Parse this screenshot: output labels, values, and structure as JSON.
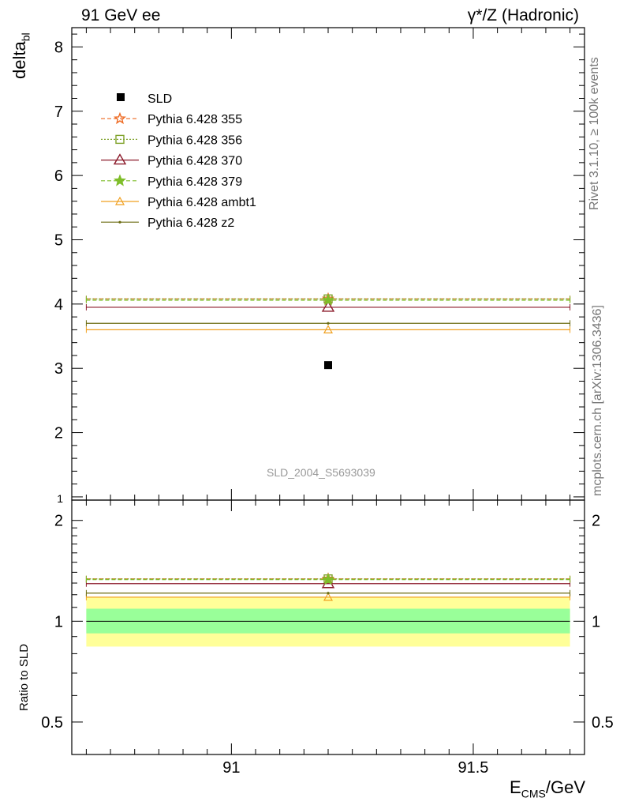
{
  "header": {
    "left": "91 GeV ee",
    "right": "γ*/Z (Hadronic)"
  },
  "side_text": {
    "rivet": "Rivet 3.1.10, ≥ 100k events",
    "mcplots": "mcplots.cern.ch [arXiv:1306.3436]"
  },
  "watermark": "SLD_2004_S5693039",
  "chart_data": [
    {
      "type": "scatter",
      "panel": "main",
      "ylabel": "delta",
      "ylabel_sub": "bl",
      "xlim": [
        90.67,
        91.73
      ],
      "ylim": [
        0.95,
        8.3
      ],
      "yticks": [
        1,
        2,
        3,
        4,
        5,
        6,
        7,
        8
      ],
      "ytick_labels": [
        "1",
        "2",
        "3",
        "4",
        "5",
        "6",
        "7",
        "8"
      ],
      "legend_position": "top-left",
      "data": {
        "name": "SLD",
        "x": 91.2,
        "y": 3.05,
        "color": "#000000"
      },
      "series": [
        {
          "name": "Pythia 6.428 355",
          "y": 4.08,
          "color": "#ee6a22",
          "dash": "5,3",
          "marker": "star-open"
        },
        {
          "name": "Pythia 6.428 356",
          "y": 4.08,
          "color": "#7fa22a",
          "dash": "2,2",
          "marker": "square-open"
        },
        {
          "name": "Pythia 6.428 370",
          "y": 3.95,
          "color": "#8b1a2a",
          "dash": "",
          "marker": "triangle-open"
        },
        {
          "name": "Pythia 6.428 379",
          "y": 4.06,
          "color": "#7fbe2a",
          "dash": "5,3",
          "marker": "star"
        },
        {
          "name": "Pythia 6.428 ambt1",
          "y": 3.6,
          "color": "#f0a020",
          "dash": "",
          "marker": "triangle-open-small"
        },
        {
          "name": "Pythia 6.428 z2",
          "y": 3.7,
          "color": "#6b6b10",
          "dash": "",
          "marker": "dot"
        }
      ]
    },
    {
      "type": "scatter",
      "panel": "ratio",
      "ylabel": "Ratio to SLD",
      "xlabel": "E",
      "xlabel_sub": "CMS",
      "xlabel_unit": "/GeV",
      "xlim": [
        90.67,
        91.73
      ],
      "xticks": [
        91,
        91.5
      ],
      "xtick_labels": [
        "91",
        "91.5"
      ],
      "ylim": [
        0.4,
        2.3
      ],
      "yscale": "log",
      "yticks": [
        0.5,
        1,
        2
      ],
      "ytick_labels": [
        "0.5",
        "1",
        "2"
      ],
      "bands": [
        {
          "low": 0.84,
          "high": 1.18,
          "color": "#ffff99"
        },
        {
          "low": 0.92,
          "high": 1.09,
          "color": "#99ff99"
        }
      ],
      "reference": 1,
      "series": [
        {
          "name": "Pythia 6.428 355",
          "y": 1.338,
          "color": "#ee6a22"
        },
        {
          "name": "Pythia 6.428 356",
          "y": 1.338,
          "color": "#7fa22a"
        },
        {
          "name": "Pythia 6.428 370",
          "y": 1.295,
          "color": "#8b1a2a"
        },
        {
          "name": "Pythia 6.428 379",
          "y": 1.331,
          "color": "#7fbe2a"
        },
        {
          "name": "Pythia 6.428 ambt1",
          "y": 1.18,
          "color": "#f0a020"
        },
        {
          "name": "Pythia 6.428 z2",
          "y": 1.213,
          "color": "#6b6b10"
        }
      ]
    }
  ]
}
